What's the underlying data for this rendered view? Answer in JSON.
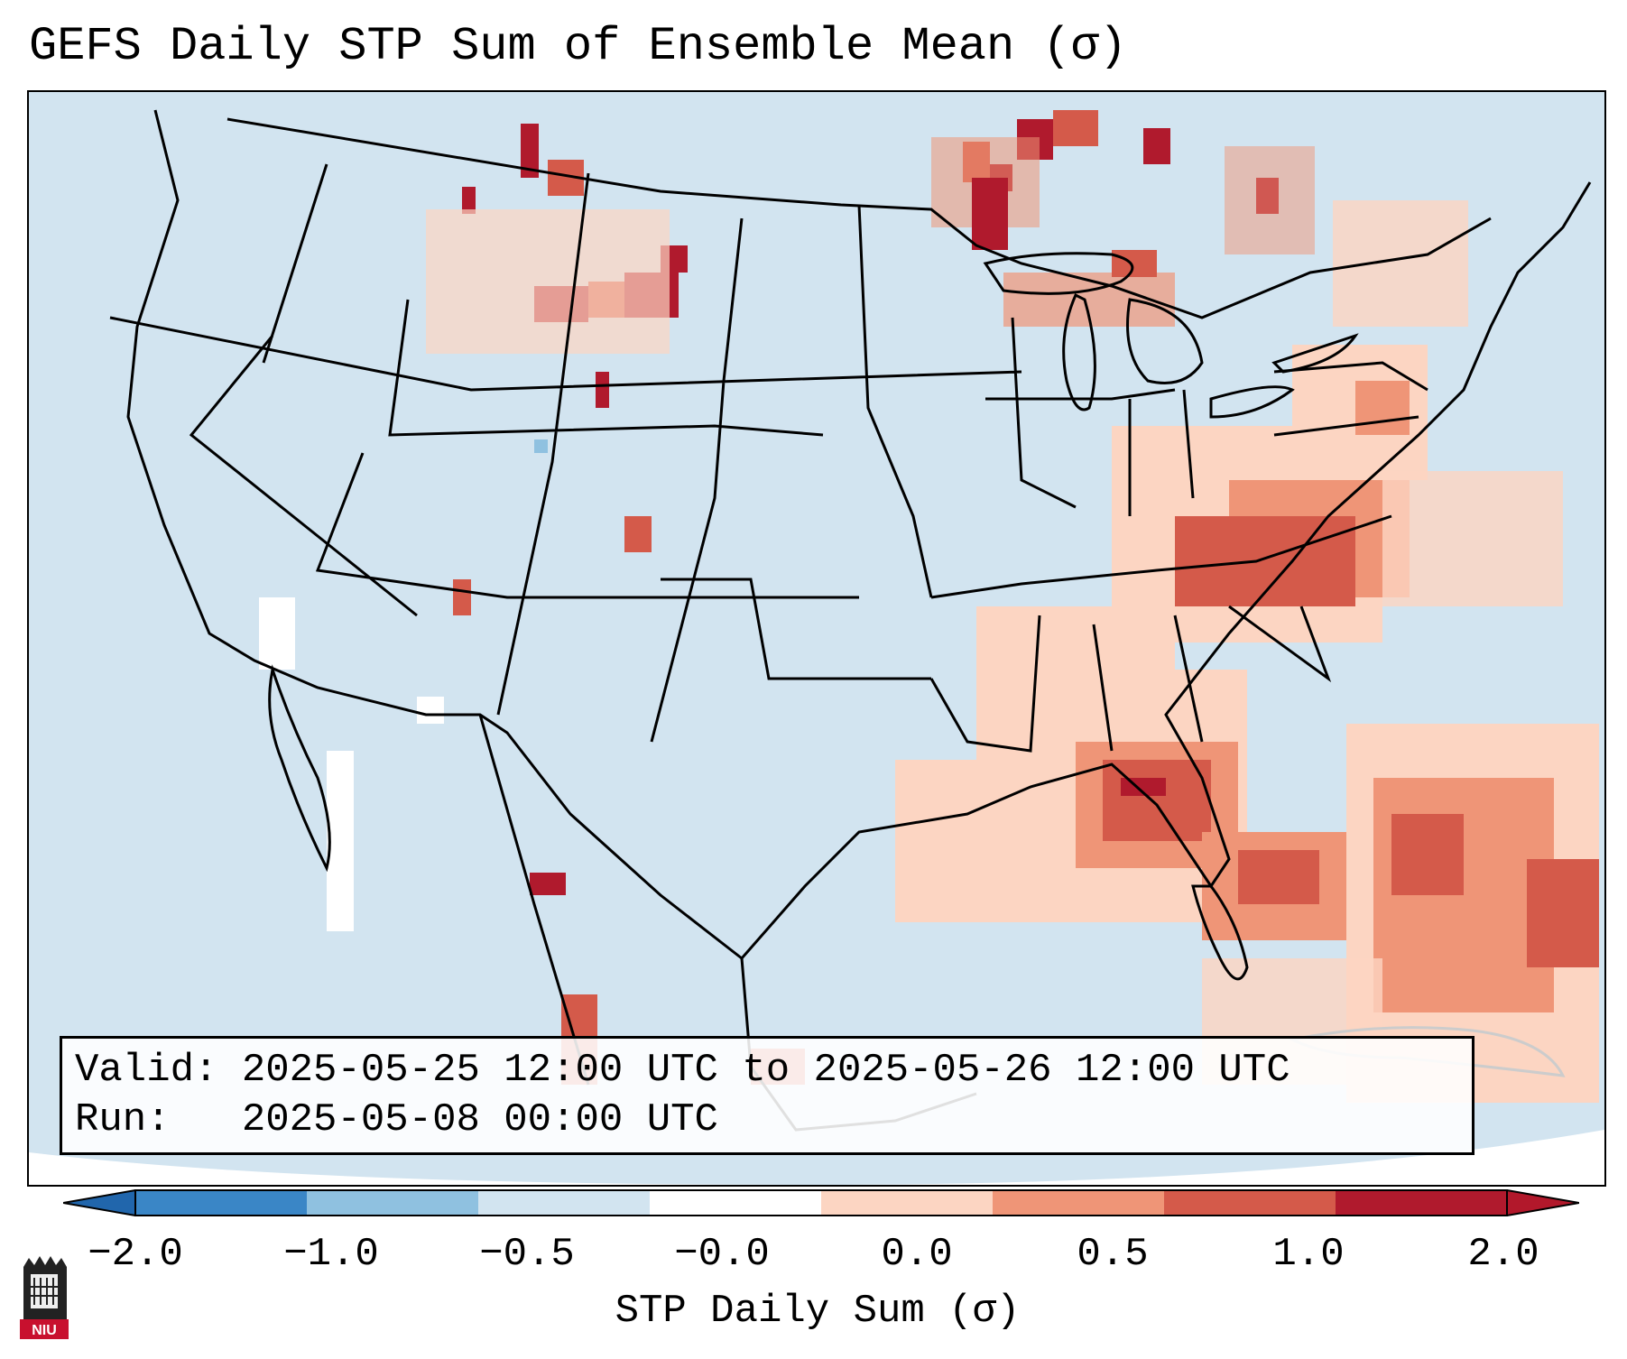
{
  "title": "GEFS Daily STP Sum of Ensemble Mean (σ)",
  "info": {
    "valid_line": "Valid: 2025-05-25 12:00 UTC to 2025-05-26 12:00 UTC",
    "run_line": "Run:   2025-05-08 00:00 UTC"
  },
  "colorbar": {
    "label": "STP Daily Sum (σ)",
    "ticks": [
      "−2.0",
      "−1.0",
      "−0.5",
      "−0.0",
      "0.0",
      "0.5",
      "1.0",
      "2.0"
    ],
    "colors": [
      "#3a86c6",
      "#8fc1e0",
      "#d2e4f0",
      "#ffffff",
      "#fcd5c2",
      "#ef9577",
      "#d45a4a",
      "#b01a2d"
    ]
  },
  "colors": {
    "background": "#d2e4f0",
    "outline": "#000000"
  },
  "logo": {
    "text": "NIU"
  }
}
